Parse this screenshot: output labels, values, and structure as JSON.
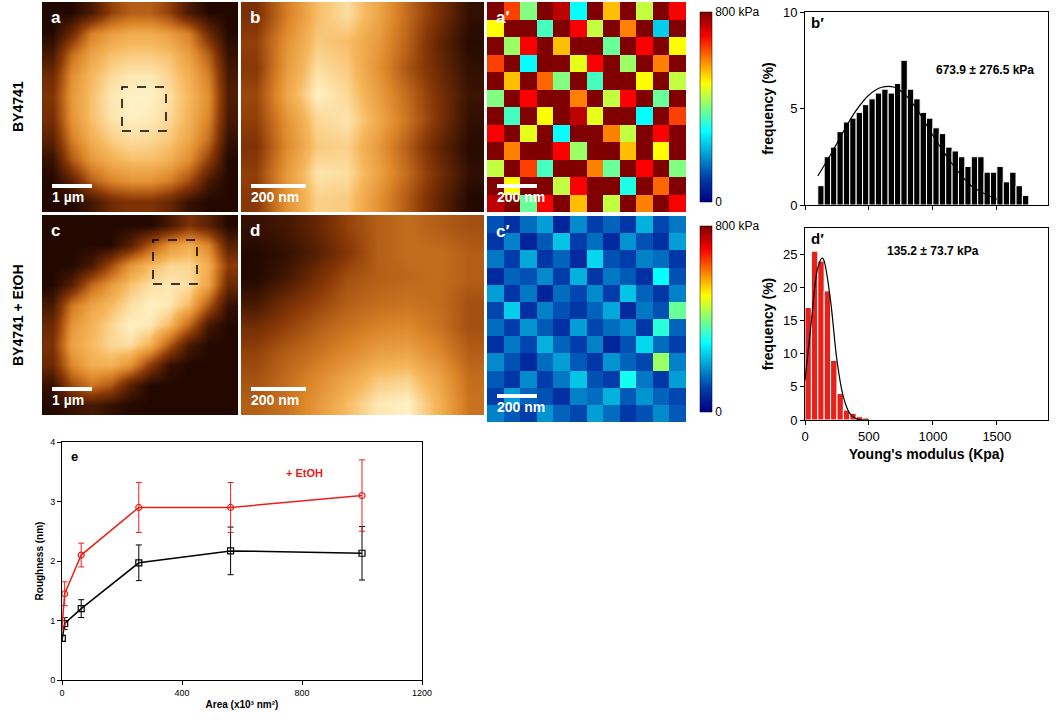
{
  "row_labels": [
    "BY4741",
    "BY4741 + EtOH"
  ],
  "chart_data": [
    {
      "panel": "a",
      "type": "heatmap",
      "color": "copper",
      "scale_bar": "1 µm",
      "tick_labels": false,
      "z": [
        [
          0,
          0,
          0.1,
          0.3,
          0.4,
          0.4,
          0.3,
          0.1,
          0,
          0
        ],
        [
          0,
          0.2,
          0.5,
          0.6,
          0.65,
          0.65,
          0.6,
          0.5,
          0.2,
          0
        ],
        [
          0.1,
          0.45,
          0.62,
          0.7,
          0.72,
          0.72,
          0.7,
          0.6,
          0.4,
          0.05
        ],
        [
          0.2,
          0.55,
          0.68,
          0.75,
          0.78,
          0.78,
          0.74,
          0.66,
          0.5,
          0.1
        ],
        [
          0.25,
          0.58,
          0.7,
          0.78,
          0.8,
          0.8,
          0.76,
          0.68,
          0.55,
          0.12
        ],
        [
          0.22,
          0.57,
          0.7,
          0.77,
          0.8,
          0.79,
          0.75,
          0.67,
          0.52,
          0.1
        ],
        [
          0.15,
          0.5,
          0.66,
          0.73,
          0.76,
          0.75,
          0.72,
          0.63,
          0.45,
          0.05
        ],
        [
          0.05,
          0.38,
          0.58,
          0.66,
          0.7,
          0.7,
          0.66,
          0.55,
          0.3,
          0
        ],
        [
          0,
          0.15,
          0.4,
          0.52,
          0.57,
          0.57,
          0.5,
          0.35,
          0.1,
          0
        ],
        [
          0,
          0,
          0.08,
          0.2,
          0.25,
          0.25,
          0.18,
          0.05,
          0,
          0
        ]
      ]
    },
    {
      "panel": "b",
      "type": "heatmap",
      "color": "copper",
      "scale_bar": "200 nm",
      "tick_labels": false,
      "z": [
        [
          0.35,
          0.55,
          0.7,
          0.75,
          0.65,
          0.5,
          0.35,
          0.2
        ],
        [
          0.4,
          0.6,
          0.72,
          0.7,
          0.62,
          0.48,
          0.3,
          0.18
        ],
        [
          0.38,
          0.62,
          0.75,
          0.72,
          0.6,
          0.45,
          0.32,
          0.2
        ],
        [
          0.42,
          0.65,
          0.78,
          0.74,
          0.63,
          0.5,
          0.35,
          0.22
        ],
        [
          0.4,
          0.6,
          0.74,
          0.76,
          0.66,
          0.52,
          0.36,
          0.2
        ],
        [
          0.36,
          0.58,
          0.72,
          0.73,
          0.62,
          0.47,
          0.3,
          0.18
        ],
        [
          0.4,
          0.62,
          0.76,
          0.75,
          0.64,
          0.5,
          0.34,
          0.2
        ],
        [
          0.38,
          0.6,
          0.73,
          0.72,
          0.6,
          0.46,
          0.3,
          0.17
        ]
      ]
    },
    {
      "panel": "c",
      "type": "heatmap",
      "color": "copper",
      "scale_bar": "1 µm",
      "tick_labels": false,
      "z": [
        [
          0,
          0,
          0,
          0,
          0,
          0,
          0.1,
          0.25,
          0.15,
          0
        ],
        [
          0,
          0,
          0,
          0,
          0.15,
          0.4,
          0.6,
          0.68,
          0.55,
          0.15
        ],
        [
          0,
          0,
          0.1,
          0.35,
          0.6,
          0.72,
          0.78,
          0.78,
          0.68,
          0.3
        ],
        [
          0,
          0.15,
          0.45,
          0.62,
          0.74,
          0.8,
          0.82,
          0.8,
          0.65,
          0.2
        ],
        [
          0.1,
          0.5,
          0.65,
          0.72,
          0.8,
          0.84,
          0.82,
          0.72,
          0.4,
          0.05
        ],
        [
          0.2,
          0.6,
          0.7,
          0.78,
          0.84,
          0.82,
          0.72,
          0.45,
          0.1,
          0
        ],
        [
          0.25,
          0.65,
          0.72,
          0.78,
          0.8,
          0.7,
          0.4,
          0.1,
          0,
          0
        ],
        [
          0.2,
          0.55,
          0.68,
          0.7,
          0.6,
          0.3,
          0.05,
          0,
          0,
          0
        ],
        [
          0.05,
          0.35,
          0.5,
          0.4,
          0.15,
          0,
          0,
          0,
          0,
          0
        ],
        [
          0,
          0.05,
          0.1,
          0.05,
          0,
          0,
          0,
          0,
          0,
          0
        ]
      ]
    },
    {
      "panel": "d",
      "type": "heatmap",
      "color": "copper",
      "scale_bar": "200 nm",
      "tick_labels": false,
      "z": [
        [
          0.15,
          0.2,
          0.3,
          0.45,
          0.55,
          0.6,
          0.55,
          0.5
        ],
        [
          0.1,
          0.15,
          0.25,
          0.4,
          0.55,
          0.6,
          0.6,
          0.55
        ],
        [
          0.1,
          0.2,
          0.35,
          0.5,
          0.55,
          0.58,
          0.6,
          0.55
        ],
        [
          0.2,
          0.35,
          0.45,
          0.55,
          0.6,
          0.62,
          0.6,
          0.5
        ],
        [
          0.35,
          0.45,
          0.55,
          0.62,
          0.68,
          0.7,
          0.62,
          0.5
        ],
        [
          0.45,
          0.55,
          0.62,
          0.7,
          0.78,
          0.8,
          0.7,
          0.55
        ],
        [
          0.5,
          0.6,
          0.7,
          0.8,
          0.9,
          0.92,
          0.8,
          0.6
        ],
        [
          0.55,
          0.62,
          0.75,
          0.88,
          0.98,
          1.0,
          0.85,
          0.62
        ]
      ]
    },
    {
      "panel": "a′",
      "type": "heatmap",
      "color": "jet",
      "scale_bar": "200 nm",
      "tick_labels": false,
      "zlim": [
        0,
        800
      ],
      "zticks": [
        0,
        {
          "value": 800,
          "label": "800 kPa"
        }
      ],
      "z": [
        [
          800,
          650,
          400,
          800,
          750,
          300,
          800,
          550,
          800,
          450,
          800,
          700
        ],
        [
          500,
          800,
          800,
          350,
          800,
          700,
          450,
          800,
          600,
          800,
          250,
          800
        ],
        [
          800,
          420,
          700,
          800,
          550,
          800,
          800,
          380,
          800,
          700,
          800,
          500
        ],
        [
          650,
          800,
          300,
          800,
          800,
          480,
          700,
          800,
          420,
          800,
          600,
          800
        ],
        [
          800,
          550,
          800,
          620,
          400,
          800,
          350,
          800,
          800,
          500,
          800,
          450
        ],
        [
          400,
          800,
          700,
          800,
          800,
          600,
          800,
          450,
          700,
          800,
          380,
          800
        ],
        [
          800,
          350,
          800,
          500,
          800,
          750,
          480,
          800,
          800,
          300,
          800,
          650
        ],
        [
          700,
          800,
          480,
          800,
          300,
          800,
          800,
          600,
          450,
          800,
          700,
          800
        ],
        [
          800,
          600,
          800,
          800,
          700,
          420,
          800,
          800,
          550,
          800,
          500,
          800
        ],
        [
          450,
          800,
          650,
          350,
          800,
          800,
          600,
          380,
          800,
          700,
          800,
          400
        ],
        [
          800,
          500,
          800,
          800,
          450,
          700,
          800,
          800,
          320,
          800,
          620,
          800
        ],
        [
          750,
          800,
          380,
          700,
          800,
          550,
          800,
          450,
          800,
          600,
          800,
          700
        ]
      ]
    },
    {
      "panel": "c′",
      "type": "heatmap",
      "color": "jet",
      "scale_bar": "200 nm",
      "tick_labels": false,
      "zlim": [
        0,
        800
      ],
      "zticks": [
        0,
        {
          "value": 800,
          "label": "800 kPa"
        }
      ],
      "z": [
        [
          120,
          80,
          150,
          200,
          60,
          180,
          100,
          140,
          90,
          220,
          110,
          160
        ],
        [
          90,
          170,
          60,
          130,
          240,
          100,
          150,
          70,
          190,
          120,
          80,
          200
        ],
        [
          160,
          100,
          210,
          90,
          140,
          70,
          260,
          120,
          100,
          170,
          150,
          90
        ],
        [
          70,
          140,
          120,
          180,
          100,
          220,
          90,
          160,
          130,
          80,
          300,
          120
        ],
        [
          200,
          90,
          160,
          60,
          150,
          110,
          180,
          100,
          240,
          140,
          90,
          170
        ],
        [
          110,
          250,
          80,
          170,
          120,
          90,
          140,
          210,
          70,
          160,
          120,
          380
        ],
        [
          150,
          100,
          190,
          130,
          80,
          200,
          110,
          150,
          180,
          90,
          330,
          140
        ],
        [
          80,
          160,
          110,
          220,
          140,
          100,
          170,
          60,
          120,
          260,
          150,
          100
        ],
        [
          180,
          120,
          70,
          150,
          200,
          130,
          90,
          190,
          140,
          110,
          420,
          170
        ],
        [
          130,
          90,
          180,
          100,
          160,
          240,
          120,
          100,
          310,
          160,
          90,
          200
        ],
        [
          100,
          200,
          140,
          120,
          80,
          170,
          150,
          220,
          130,
          190,
          140,
          110
        ],
        [
          170,
          130,
          100,
          190,
          140,
          110,
          200,
          150,
          90,
          120,
          180,
          130
        ]
      ]
    },
    {
      "panel": "b′",
      "type": "histogram",
      "color": "#000000",
      "grid": false,
      "tick_labels": "y",
      "annotation": "673.9 ± 276.5 kPa",
      "y_label": "frequency (%)",
      "bins": [
        100,
        150,
        200,
        250,
        300,
        350,
        400,
        450,
        500,
        550,
        600,
        650,
        700,
        750,
        800,
        850,
        900,
        950,
        1000,
        1050,
        1100,
        1150,
        1200,
        1250,
        1300,
        1350,
        1400,
        1450,
        1500,
        1550,
        1600,
        1650,
        1700,
        1750
      ],
      "values": [
        1.0,
        2.5,
        3.0,
        3.8,
        4.3,
        4.5,
        4.8,
        5.2,
        5.5,
        5.8,
        6.0,
        5.8,
        6.3,
        7.5,
        6.0,
        5.5,
        4.8,
        4.5,
        4.0,
        3.7,
        3.0,
        2.8,
        2.5,
        2.0,
        2.5,
        2.5,
        1.7,
        1.7,
        2.0,
        1.2,
        1.7,
        1.0,
        0.5
      ],
      "fit": {
        "x": [
          100,
          200,
          300,
          400,
          500,
          600,
          700,
          800,
          900,
          1000,
          1100,
          1200,
          1300,
          1400,
          1500
        ],
        "values": [
          1.5,
          2.6,
          3.8,
          4.9,
          5.7,
          6.1,
          6.1,
          5.6,
          4.7,
          3.6,
          2.6,
          1.7,
          1.0,
          0.6,
          0.3
        ]
      },
      "xlim": [
        0,
        1900
      ],
      "xticks": [
        0,
        500,
        1000,
        1500
      ],
      "ylim": [
        0,
        10
      ],
      "yticks": [
        0,
        5,
        10
      ]
    },
    {
      "panel": "d′",
      "type": "histogram",
      "color": "#e8201a",
      "grid": false,
      "annotation": "135.2 ± 73.7 kPa",
      "y_label": "frequency (%)",
      "x_label": "Young's modulus (Kpa)",
      "bins": [
        0,
        50,
        100,
        150,
        200,
        250,
        300,
        350,
        400,
        450,
        500
      ],
      "values": [
        17,
        25.5,
        24,
        19.5,
        9,
        4,
        1.5,
        1.0,
        0.5,
        0.3
      ],
      "fit": {
        "x": [
          0,
          50,
          100,
          135,
          150,
          200,
          250,
          300,
          350,
          400,
          500
        ],
        "values": [
          6,
          15,
          23,
          24.5,
          24,
          18,
          9,
          3.5,
          1,
          0.2,
          0
        ]
      },
      "xlim": [
        0,
        1900
      ],
      "xticks": [
        0,
        500,
        1000,
        1500
      ],
      "ylim": [
        0,
        29
      ],
      "yticks": [
        0,
        5,
        10,
        15,
        20,
        25
      ]
    },
    {
      "panel": "e",
      "type": "line",
      "grid": false,
      "x_label": "Area (x10³ nm²)",
      "y_label": "Roughness (nm)",
      "x": [
        1,
        9,
        64,
        256,
        562,
        1000
      ],
      "series": [
        {
          "color": "#000000",
          "marker": "square-open",
          "values": [
            0.7,
            0.95,
            1.2,
            1.97,
            2.17,
            2.13
          ],
          "errors": [
            0.05,
            0.1,
            0.15,
            0.3,
            0.4,
            0.45
          ]
        },
        {
          "name": "+ EtOH",
          "color": "#e8201a",
          "marker": "circle-open",
          "values": [
            0.95,
            1.45,
            2.1,
            2.9,
            2.9,
            3.1
          ],
          "errors": [
            0.1,
            0.2,
            0.2,
            0.42,
            0.42,
            0.6
          ]
        }
      ],
      "xlim": [
        0,
        1200
      ],
      "xticks": [
        0,
        400,
        800,
        1200
      ],
      "ylim": [
        0,
        4
      ],
      "yticks": [
        0,
        1,
        2,
        3,
        4
      ]
    }
  ]
}
